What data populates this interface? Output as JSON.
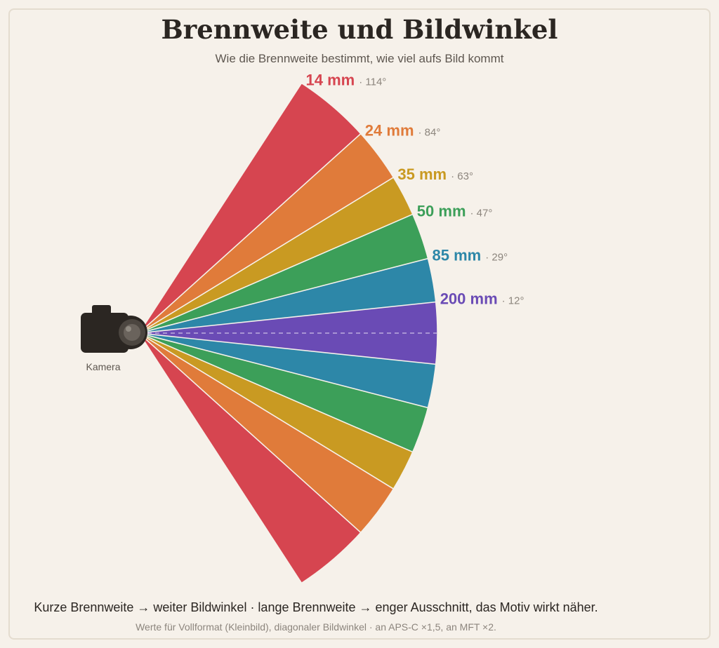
{
  "title": "Brennweite und Bildwinkel",
  "subtitle": "Wie die Brennweite bestimmt, wie viel aufs Bild kommt",
  "camera_label": "Kamera",
  "lenses": [
    {
      "focal": "14 mm",
      "angle_text": "· 114°",
      "angle_deg": 114,
      "color": "#d64550"
    },
    {
      "focal": "24 mm",
      "angle_text": "· 84°",
      "angle_deg": 84,
      "color": "#e07b3a"
    },
    {
      "focal": "35 mm",
      "angle_text": "· 63°",
      "angle_deg": 63,
      "color": "#c99a22"
    },
    {
      "focal": "50 mm",
      "angle_text": "· 47°",
      "angle_deg": 47,
      "color": "#3c9f59"
    },
    {
      "focal": "85 mm",
      "angle_text": "· 29°",
      "angle_deg": 29,
      "color": "#2d87a8"
    },
    {
      "focal": "200 mm",
      "angle_text": "· 12°",
      "angle_deg": 12,
      "color": "#6a4bb5"
    }
  ],
  "footer": {
    "main": "Kurze Brennweite → weiter Bildwinkel · lange Brennweite → enger Ausschnitt, das Motiv wirkt näher.",
    "note": "Werte für Vollformat (Kleinbild), diagonaler Bildwinkel · an APS-C ×1,5, an MFT ×2."
  }
}
